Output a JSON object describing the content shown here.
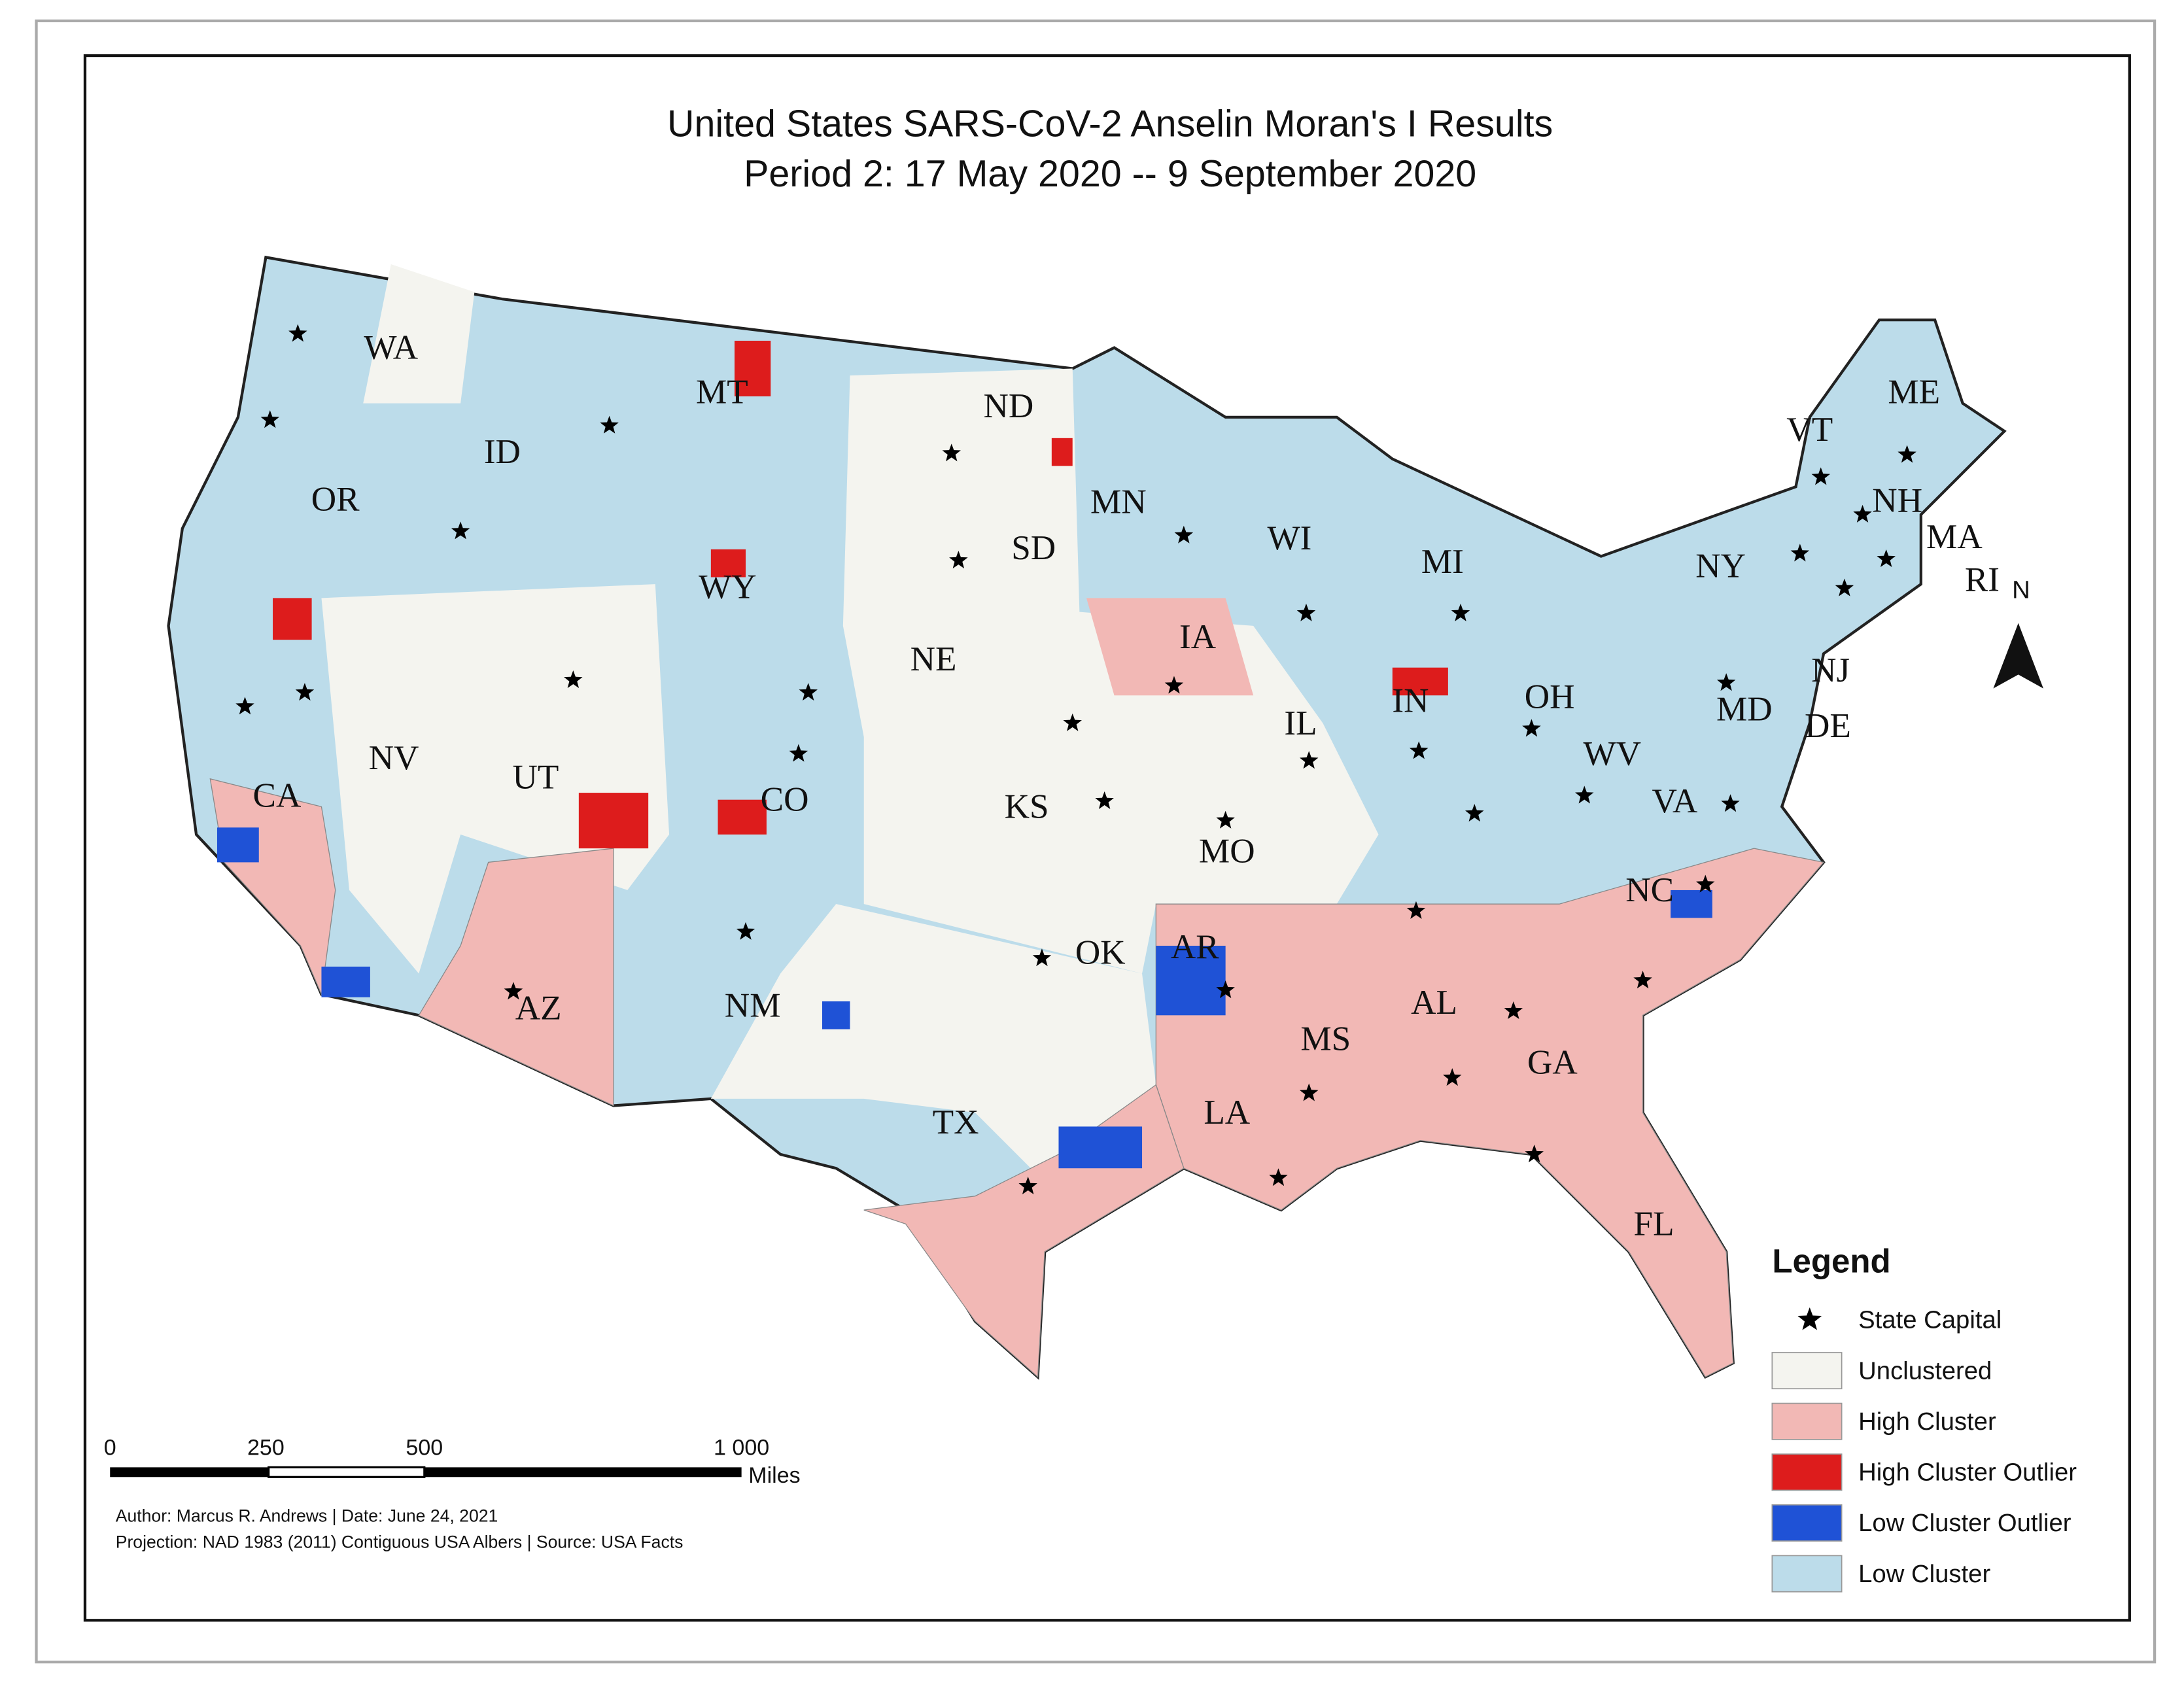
{
  "header": {
    "title": "United States SARS-CoV-2 Anselin Moran's I Results",
    "subtitle": "Period 2: 17 May 2020  --  9 September 2020"
  },
  "states": [
    "WA",
    "OR",
    "CA",
    "ID",
    "NV",
    "MT",
    "WY",
    "UT",
    "AZ",
    "ND",
    "SD",
    "NE",
    "CO",
    "KS",
    "NM",
    "OK",
    "TX",
    "MN",
    "IA",
    "MO",
    "AR",
    "LA",
    "WI",
    "IL",
    "MI",
    "IN",
    "OH",
    "MS",
    "AL",
    "GA",
    "FL",
    "NC",
    "VA",
    "WV",
    "NY",
    "VT",
    "NH",
    "MA",
    "RI",
    "ME",
    "NJ",
    "DE",
    "MD"
  ],
  "north_arrow": "N",
  "legend": {
    "title": "Legend",
    "items": [
      {
        "label": "State Capital"
      },
      {
        "label": "Unclustered",
        "color": "#f4f4ef"
      },
      {
        "label": "High Cluster",
        "color": "#f2b8b5"
      },
      {
        "label": "High Cluster Outlier",
        "color": "#dd1c1c"
      },
      {
        "label": "Low Cluster Outlier",
        "color": "#1f52d6"
      },
      {
        "label": "Low Cluster",
        "color": "#bcdcea"
      }
    ]
  },
  "scale_bar": {
    "labels": [
      "0",
      "250",
      "500",
      "1 000"
    ],
    "unit": "Miles"
  },
  "footer": {
    "author": "Author: Marcus R. Andrews | Date: June 24, 2021",
    "projection": "Projection: NAD 1983 (2011) Contiguous USA Albers  | Source: USA Facts"
  }
}
